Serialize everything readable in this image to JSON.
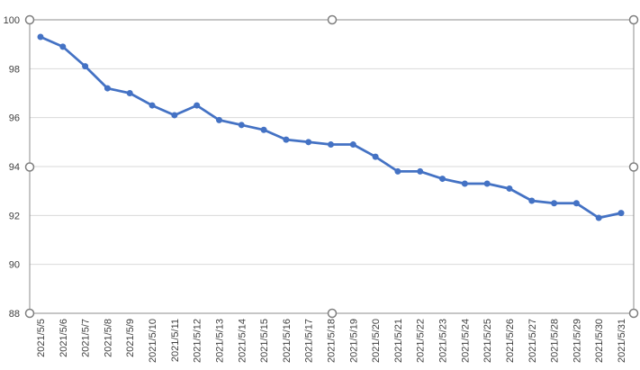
{
  "chart_data": {
    "type": "line",
    "title": "",
    "xlabel": "",
    "ylabel": "",
    "ylim": [
      88,
      100
    ],
    "y_ticks": [
      88,
      90,
      92,
      94,
      96,
      98,
      100
    ],
    "grid": "horizontal",
    "legend": "none",
    "series_color": "#4472C4",
    "categories": [
      "2021/5/5",
      "2021/5/6",
      "2021/5/7",
      "2021/5/8",
      "2021/5/9",
      "2021/5/10",
      "2021/5/11",
      "2021/5/12",
      "2021/5/13",
      "2021/5/14",
      "2021/5/15",
      "2021/5/16",
      "2021/5/17",
      "2021/5/18",
      "2021/5/19",
      "2021/5/20",
      "2021/5/21",
      "2021/5/22",
      "2021/5/23",
      "2021/5/24",
      "2021/5/25",
      "2021/5/26",
      "2021/5/27",
      "2021/5/28",
      "2021/5/29",
      "2021/5/30",
      "2021/5/31"
    ],
    "series": [
      {
        "values": [
          99.3,
          98.9,
          98.1,
          97.2,
          97.0,
          96.5,
          96.1,
          96.5,
          95.9,
          95.7,
          95.5,
          95.1,
          95.0,
          94.9,
          94.9,
          94.4,
          93.8,
          93.8,
          93.5,
          93.3,
          93.3,
          93.1,
          92.6,
          92.5,
          92.5,
          91.9,
          92.1
        ]
      }
    ]
  }
}
